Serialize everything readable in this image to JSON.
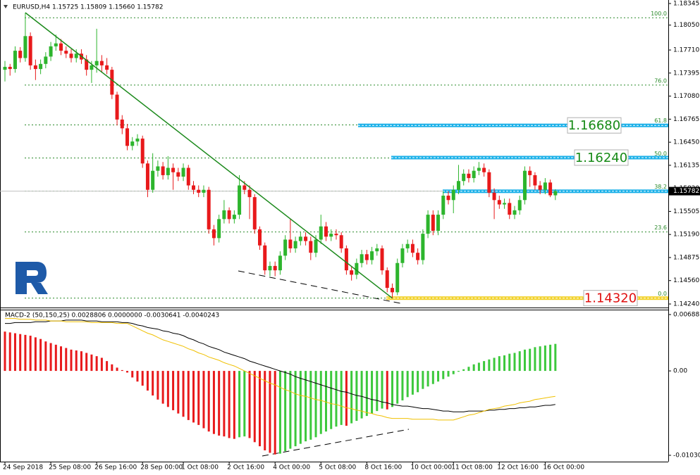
{
  "chart_data": [
    {
      "type": "candlestick",
      "title": "EURUSD,H4  1.15725 1.15809 1.15660 1.15782",
      "categories": [
        "24 Sep 2018",
        null,
        null,
        null,
        null,
        null,
        null,
        null,
        null,
        "25 Sep 08:00",
        null,
        null,
        null,
        null,
        null,
        null,
        null,
        null,
        "26 Sep 16:00",
        null,
        null,
        null,
        null,
        null,
        null,
        null,
        null,
        "28 Sep 00:00",
        null,
        null,
        null,
        null,
        null,
        null,
        null,
        "1 Oct 08:00",
        null,
        null,
        null,
        null,
        null,
        null,
        null,
        null,
        "2 Oct 16:00",
        null,
        null,
        null,
        null,
        null,
        null,
        null,
        null,
        "4 Oct 00:00",
        null,
        null,
        null,
        null,
        null,
        null,
        null,
        null,
        "5 Oct 08:00",
        null,
        null,
        null,
        null,
        null,
        null,
        null,
        null,
        "8 Oct 16:00",
        null,
        null,
        null,
        null,
        null,
        null,
        null,
        null,
        "10 Oct 00:00",
        null,
        null,
        null,
        null,
        null,
        null,
        null,
        "11 Oct 08:00",
        null,
        null,
        null,
        null,
        null,
        null,
        null,
        null,
        "12 Oct 16:00",
        null,
        null,
        null,
        null,
        null,
        null,
        null,
        null,
        "16 Oct 00:00",
        null,
        null
      ],
      "open": [
        1.1744,
        1.1748,
        1.1745,
        1.177,
        1.176,
        1.179,
        1.175,
        1.1745,
        1.1752,
        1.1762,
        1.1776,
        1.178,
        1.177,
        1.1766,
        1.176,
        1.1766,
        1.1758,
        1.1744,
        1.175,
        1.1756,
        1.175,
        1.1744,
        1.171,
        1.1676,
        1.1664,
        1.164,
        1.1646,
        1.165,
        1.1616,
        1.158,
        1.1606,
        1.1612,
        1.16,
        1.161,
        1.1604,
        1.1598,
        1.161,
        1.1586,
        1.158,
        1.1576,
        1.158,
        1.1526,
        1.1514,
        1.154,
        1.1552,
        1.154,
        1.1546,
        1.1586,
        1.158,
        1.157,
        1.1526,
        1.1504,
        1.147,
        1.1476,
        1.147,
        1.149,
        1.1512,
        1.15,
        1.151,
        1.1516,
        1.151,
        1.1494,
        1.1512,
        1.153,
        1.1516,
        1.152,
        1.1518,
        1.15,
        1.147,
        1.1464,
        1.148,
        1.1492,
        1.1484,
        1.1496,
        1.15,
        1.147,
        1.1446,
        1.144,
        1.148,
        1.15,
        1.1506,
        1.1494,
        1.1484,
        1.152,
        1.1546,
        1.1524,
        1.1546,
        1.1572,
        1.1566,
        1.158,
        1.1592,
        1.1602,
        1.1596,
        1.1606,
        1.161,
        1.1604,
        1.1576,
        1.1566,
        1.156,
        1.1562,
        1.1546,
        1.1552,
        1.1566,
        1.1606,
        1.16,
        1.1586,
        1.158,
        1.159,
        1.15725
      ],
      "high": [
        1.1756,
        1.1752,
        1.1776,
        1.1775,
        1.1822,
        1.1795,
        1.1758,
        1.1758,
        1.1768,
        1.1782,
        1.1792,
        1.1786,
        1.1776,
        1.1772,
        1.1772,
        1.1772,
        1.1764,
        1.1756,
        1.18,
        1.1764,
        1.176,
        1.1748,
        1.1714,
        1.1682,
        1.167,
        1.1652,
        1.1656,
        1.1654,
        1.162,
        1.163,
        1.162,
        1.1618,
        1.1626,
        1.1616,
        1.161,
        1.1616,
        1.1614,
        1.1592,
        1.1586,
        1.1586,
        1.1584,
        1.1532,
        1.1546,
        1.1566,
        1.1556,
        1.1552,
        1.16,
        1.1592,
        1.1586,
        1.1574,
        1.153,
        1.1508,
        1.1482,
        1.1482,
        1.1496,
        1.1518,
        1.154,
        1.1516,
        1.1522,
        1.1522,
        1.1516,
        1.1518,
        1.1546,
        1.1536,
        1.1526,
        1.1526,
        1.1522,
        1.1504,
        1.1476,
        1.1486,
        1.1498,
        1.1498,
        1.1502,
        1.1506,
        1.1504,
        1.1474,
        1.1452,
        1.1486,
        1.1506,
        1.1512,
        1.1512,
        1.15,
        1.1526,
        1.1552,
        1.1552,
        1.1552,
        1.1578,
        1.1578,
        1.1586,
        1.1614,
        1.1608,
        1.1608,
        1.1612,
        1.1618,
        1.1616,
        1.1608,
        1.1582,
        1.1572,
        1.1568,
        1.1568,
        1.1558,
        1.1572,
        1.1612,
        1.1612,
        1.1604,
        1.1592,
        1.1596,
        1.1594,
        1.15809
      ],
      "low": [
        1.1728,
        1.1736,
        1.174,
        1.1754,
        1.1755,
        1.1744,
        1.173,
        1.1738,
        1.1746,
        1.1756,
        1.177,
        1.1764,
        1.176,
        1.1754,
        1.1754,
        1.1752,
        1.1736,
        1.1726,
        1.174,
        1.174,
        1.1738,
        1.1704,
        1.1668,
        1.1656,
        1.1634,
        1.1634,
        1.164,
        1.161,
        1.157,
        1.1576,
        1.1598,
        1.1594,
        1.1594,
        1.158,
        1.1592,
        1.1592,
        1.158,
        1.1574,
        1.157,
        1.157,
        1.152,
        1.1504,
        1.1508,
        1.1534,
        1.1534,
        1.1534,
        1.154,
        1.1574,
        1.154,
        1.152,
        1.1498,
        1.1464,
        1.1462,
        1.1462,
        1.1464,
        1.1484,
        1.1494,
        1.1494,
        1.1504,
        1.1504,
        1.1484,
        1.1488,
        1.1506,
        1.151,
        1.151,
        1.1512,
        1.1494,
        1.1464,
        1.1456,
        1.1458,
        1.1474,
        1.1478,
        1.1478,
        1.149,
        1.1464,
        1.144,
        1.1432,
        1.1436,
        1.1474,
        1.1494,
        1.1488,
        1.1478,
        1.1478,
        1.1514,
        1.1518,
        1.1518,
        1.154,
        1.156,
        1.1548,
        1.1574,
        1.1586,
        1.159,
        1.159,
        1.16,
        1.1598,
        1.157,
        1.154,
        1.1554,
        1.1554,
        1.154,
        1.154,
        1.1546,
        1.156,
        1.1584,
        1.158,
        1.1574,
        1.1574,
        1.157,
        1.1566
      ],
      "close": [
        1.1748,
        1.1745,
        1.177,
        1.176,
        1.179,
        1.175,
        1.1745,
        1.1752,
        1.1762,
        1.1776,
        1.178,
        1.177,
        1.1766,
        1.176,
        1.1766,
        1.1758,
        1.1744,
        1.175,
        1.1756,
        1.175,
        1.1744,
        1.171,
        1.1676,
        1.1664,
        1.164,
        1.1646,
        1.165,
        1.1616,
        1.158,
        1.1606,
        1.1612,
        1.16,
        1.161,
        1.1604,
        1.1598,
        1.161,
        1.1586,
        1.158,
        1.1576,
        1.158,
        1.1526,
        1.1514,
        1.154,
        1.1552,
        1.154,
        1.1546,
        1.1586,
        1.158,
        1.157,
        1.1526,
        1.1504,
        1.147,
        1.1476,
        1.147,
        1.149,
        1.1512,
        1.15,
        1.151,
        1.1516,
        1.151,
        1.1494,
        1.1512,
        1.153,
        1.1516,
        1.152,
        1.1518,
        1.15,
        1.147,
        1.1464,
        1.148,
        1.1492,
        1.1484,
        1.1496,
        1.15,
        1.147,
        1.1446,
        1.144,
        1.148,
        1.15,
        1.1506,
        1.1494,
        1.1484,
        1.152,
        1.1546,
        1.1524,
        1.1546,
        1.1572,
        1.1566,
        1.158,
        1.1592,
        1.1602,
        1.1596,
        1.1606,
        1.161,
        1.1604,
        1.1576,
        1.1566,
        1.156,
        1.1562,
        1.1546,
        1.1552,
        1.1566,
        1.1606,
        1.16,
        1.1586,
        1.158,
        1.159,
        1.15725,
        1.15782
      ],
      "up_color": "#2db52d",
      "down_color": "#e8191b",
      "trend_color": "#1c8a1c",
      "ylim": [
        1.1424,
        1.18345
      ],
      "yticks": [
        {
          "value": 1.18345,
          "label": "1.18345"
        },
        {
          "value": 1.1805,
          "label": "1.18050"
        },
        {
          "value": 1.1771,
          "label": "1.17710"
        },
        {
          "value": 1.17395,
          "label": "1.17395"
        },
        {
          "value": 1.1708,
          "label": "1.17080"
        },
        {
          "value": 1.16765,
          "label": "1.16765"
        },
        {
          "value": 1.1645,
          "label": "1.16450"
        },
        {
          "value": 1.16135,
          "label": "1.16135"
        },
        {
          "value": 1.1582,
          "label": "1.15820"
        },
        {
          "value": 1.15505,
          "label": "1.15505"
        },
        {
          "value": 1.1519,
          "label": "1.15190"
        },
        {
          "value": 1.14875,
          "label": "1.14875"
        },
        {
          "value": 1.1456,
          "label": "1.14560"
        },
        {
          "value": 1.1424,
          "label": "1.14240"
        }
      ],
      "fibonacci": [
        {
          "label": "100.0",
          "value": 1.1815
        },
        {
          "label": "76.0",
          "value": 1.17231
        },
        {
          "label": "61.8",
          "value": 1.16687
        },
        {
          "label": "50.0",
          "value": 1.16235
        },
        {
          "label": "38.2",
          "value": 1.15783
        },
        {
          "label": "23.6",
          "value": 1.15224
        },
        {
          "label": "0.0",
          "value": 1.1432
        }
      ],
      "fib_color": "#2a8a2a",
      "levels": [
        {
          "label": "1.16680",
          "value": 1.1668,
          "color": "#1ab0e8",
          "text_color": "#168a16"
        },
        {
          "label": "1.16240",
          "value": 1.1624,
          "color": "#1ab0e8",
          "text_color": "#168a16"
        },
        {
          "value": 1.1578,
          "color": "#1ab0e8"
        },
        {
          "label": "1.14320",
          "value": 1.1432,
          "color": "#f2d22c",
          "text_color": "#e01010"
        }
      ]
    },
    {
      "type": "macd",
      "title": "MACD-2 (50,150,25) 0.0028806 0.0000000 -0.0030641 -0.0040243",
      "histogram": [
        0.0048,
        0.0047,
        0.0046,
        0.0045,
        0.0044,
        0.0043,
        0.0041,
        0.0039,
        0.0036,
        0.0034,
        0.0032,
        0.003,
        0.0028,
        0.0026,
        0.0025,
        0.0024,
        0.0022,
        0.002,
        0.0018,
        0.0016,
        0.0012,
        0.0008,
        0.0004,
        0.0001,
        -0.0002,
        -0.0008,
        -0.0013,
        -0.0018,
        -0.0024,
        -0.003,
        -0.0035,
        -0.004,
        -0.0044,
        -0.0048,
        -0.0052,
        -0.0056,
        -0.006,
        -0.0063,
        -0.0066,
        -0.007,
        -0.0074,
        -0.0077,
        -0.0079,
        -0.008,
        -0.0082,
        -0.0083,
        -0.0081,
        -0.008,
        -0.0082,
        -0.0087,
        -0.0092,
        -0.0097,
        -0.01,
        -0.0102,
        -0.0101,
        -0.0098,
        -0.0095,
        -0.0092,
        -0.0089,
        -0.0086,
        -0.0084,
        -0.0081,
        -0.0077,
        -0.0074,
        -0.0071,
        -0.0068,
        -0.0066,
        -0.0067,
        -0.0064,
        -0.0061,
        -0.0058,
        -0.0055,
        -0.0052,
        -0.0049,
        -0.0046,
        -0.0047,
        -0.0044,
        -0.004,
        -0.0036,
        -0.0032,
        -0.0029,
        -0.0026,
        -0.0022,
        -0.0019,
        -0.0016,
        -0.0013,
        -0.001,
        -0.0007,
        -0.0004,
        -0.0001,
        0.0002,
        0.0005,
        0.0008,
        0.001,
        0.0012,
        0.0014,
        0.0016,
        0.0018,
        0.0019,
        0.0021,
        0.0022,
        0.0024,
        0.0026,
        0.0027,
        0.0029,
        0.003,
        0.0031,
        0.0032,
        0.0033
      ],
      "up_color": "#3cc83c",
      "down_color": "#e8191b",
      "series": [
        {
          "color": "#000000",
          "values": [
            0.0058,
            0.0058,
            0.0059,
            0.0059,
            0.0059,
            0.0059,
            0.006,
            0.006,
            0.006,
            0.0061,
            0.0061,
            0.0061,
            0.0062,
            0.0062,
            0.0062,
            0.0062,
            0.0061,
            0.0061,
            0.0061,
            0.006,
            0.006,
            0.006,
            0.006,
            0.0059,
            0.0059,
            0.0058,
            0.0056,
            0.0055,
            0.0053,
            0.0052,
            0.0051,
            0.0049,
            0.0048,
            0.0046,
            0.0045,
            0.0043,
            0.004,
            0.0038,
            0.0035,
            0.0033,
            0.003,
            0.0028,
            0.0026,
            0.0023,
            0.0021,
            0.0019,
            0.0017,
            0.0015,
            0.0012,
            0.001,
            0.0008,
            0.0006,
            0.0004,
            0.0002,
            0,
            -0.0002,
            -0.0004,
            -0.0007,
            -0.0009,
            -0.0011,
            -0.0013,
            -0.0015,
            -0.0017,
            -0.0019,
            -0.0021,
            -0.0023,
            -0.0025,
            -0.0026,
            -0.0028,
            -0.003,
            -0.0031,
            -0.0033,
            -0.0035,
            -0.0036,
            -0.0038,
            -0.0039,
            -0.0041,
            -0.0042,
            -0.0043,
            -0.0043,
            -0.0044,
            -0.0045,
            -0.0046,
            -0.0046,
            -0.0047,
            -0.0048,
            -0.0049,
            -0.0049,
            -0.005,
            -0.005,
            -0.005,
            -0.0049,
            -0.0049,
            -0.0049,
            -0.0049,
            -0.0048,
            -0.0048,
            -0.0047,
            -0.0047,
            -0.0046,
            -0.0046,
            -0.0045,
            -0.0045,
            -0.0044,
            -0.0044,
            -0.0043,
            -0.0042,
            -0.0042,
            -0.0041
          ]
        },
        {
          "color": "#f0c000",
          "values": [
            0.0064,
            0.0064,
            0.0064,
            0.0063,
            0.0063,
            0.0063,
            0.0062,
            0.0062,
            0.0062,
            0.0061,
            0.0061,
            0.0061,
            0.006,
            0.006,
            0.006,
            0.006,
            0.006,
            0.0059,
            0.0059,
            0.0059,
            0.0059,
            0.0059,
            0.0058,
            0.0058,
            0.0058,
            0.0055,
            0.0052,
            0.0049,
            0.0046,
            0.0044,
            0.0041,
            0.0038,
            0.0036,
            0.0034,
            0.0032,
            0.003,
            0.0027,
            0.0025,
            0.0022,
            0.002,
            0.0017,
            0.0015,
            0.0013,
            0.001,
            0.0008,
            0.0006,
            0.0003,
            0,
            -0.0003,
            -0.0006,
            -0.0009,
            -0.0012,
            -0.0015,
            -0.0017,
            -0.002,
            -0.0023,
            -0.0025,
            -0.0028,
            -0.003,
            -0.0031,
            -0.0033,
            -0.0035,
            -0.0036,
            -0.0038,
            -0.004,
            -0.0041,
            -0.0043,
            -0.0045,
            -0.0046,
            -0.0048,
            -0.0049,
            -0.0051,
            -0.0052,
            -0.0054,
            -0.0055,
            -0.0057,
            -0.0058,
            -0.0058,
            -0.0058,
            -0.0058,
            -0.0059,
            -0.0059,
            -0.0059,
            -0.0059,
            -0.0059,
            -0.006,
            -0.006,
            -0.006,
            -0.006,
            -0.0058,
            -0.0056,
            -0.0054,
            -0.0053,
            -0.0051,
            -0.0049,
            -0.0047,
            -0.0046,
            -0.0045,
            -0.0043,
            -0.0042,
            -0.0041,
            -0.0039,
            -0.0038,
            -0.0037,
            -0.0035,
            -0.0034,
            -0.0033,
            -0.0032,
            -0.0031
          ]
        }
      ],
      "ylim": [
        -0.010304,
        0.006881
      ],
      "yticks": [
        0.006881,
        {
          "value": 0,
          "label": "0.00"
        },
        -0.010304
      ]
    }
  ]
}
